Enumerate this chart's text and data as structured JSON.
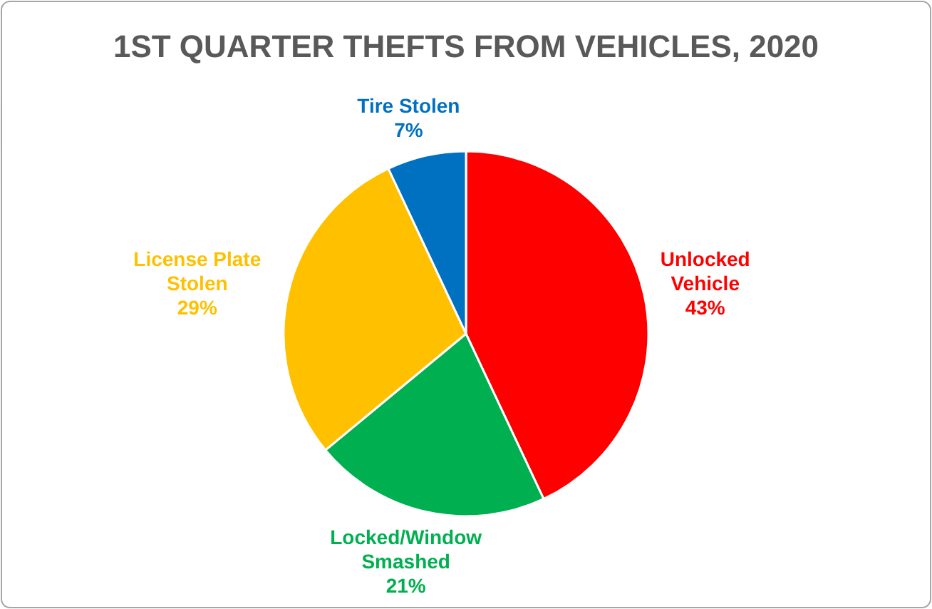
{
  "chart_data": {
    "type": "pie",
    "title": "1ST QUARTER THEFTS FROM VEHICLES, 2020",
    "categories": [
      "Unlocked Vehicle",
      "Locked/Window Smashed",
      "License Plate Stolen",
      "Tire Stolen"
    ],
    "values": [
      43,
      21,
      29,
      7
    ],
    "colors": [
      "#ff0000",
      "#00b050",
      "#ffc000",
      "#0070c0"
    ],
    "value_labels": [
      "43%",
      "21%",
      "29%",
      "7%"
    ],
    "legend": false
  }
}
